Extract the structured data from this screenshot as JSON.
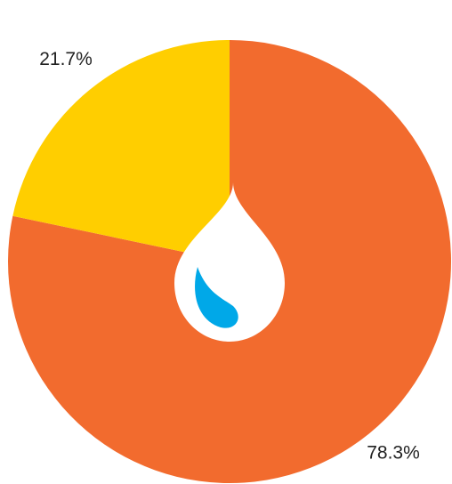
{
  "chart_data": {
    "type": "pie",
    "values": [
      78.3,
      21.7
    ],
    "value_labels": [
      "78.3%",
      "21.7%"
    ],
    "colors": [
      "#f26b2e",
      "#ffce00"
    ]
  }
}
